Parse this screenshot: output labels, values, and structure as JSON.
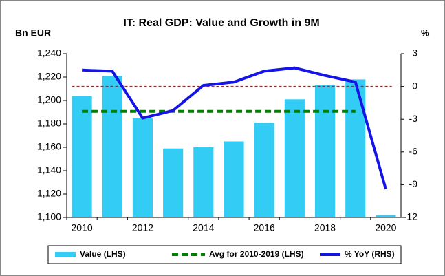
{
  "chart_data": {
    "type": "combo",
    "title": "IT: Real GDP: Value and Growth in 9M",
    "y_label": "Bn EUR",
    "y2_label": "%",
    "categories": [
      "2010",
      null,
      "2012",
      null,
      "2014",
      null,
      "2016",
      null,
      "2018",
      null,
      "2020"
    ],
    "series": [
      {
        "name": "Value (LHS)",
        "kind": "bar",
        "color": "#33ccf5",
        "values": [
          1204,
          1221,
          1185,
          1159,
          1160,
          1165,
          1181,
          1201,
          1213,
          1218,
          1102
        ]
      },
      {
        "name": "Avg for 2010-2019 (LHS)",
        "kind": "dashed-line",
        "color": "#008000",
        "values": [
          1190.7,
          1190.7,
          1190.7,
          1190.7,
          1190.7,
          1190.7,
          1190.7,
          1190.7,
          1190.7,
          1190.7,
          null
        ]
      },
      {
        "name": "% YoY (RHS)",
        "kind": "line",
        "axis": "y2",
        "color": "#1414e6",
        "values": [
          1.5,
          1.4,
          -2.9,
          -2.2,
          0.1,
          0.4,
          1.4,
          1.7,
          1.0,
          0.4,
          -9.4
        ]
      }
    ],
    "reference_line": {
      "axis": "y2",
      "value": 0,
      "color": "#ff0000"
    },
    "ylim": [
      1100,
      1240
    ],
    "yticks": [
      {
        "value": 1100,
        "label": "1,100"
      },
      {
        "value": 1120,
        "label": "1,120"
      },
      {
        "value": 1140,
        "label": "1,140"
      },
      {
        "value": 1160,
        "label": "1,160"
      },
      {
        "value": 1180,
        "label": "1,180"
      },
      {
        "value": 1200,
        "label": "1,200"
      },
      {
        "value": 1220,
        "label": "1,220"
      },
      {
        "value": 1240,
        "label": "1,240"
      }
    ],
    "y2lim": [
      -12,
      3
    ],
    "y2ticks": [
      -12,
      -9,
      -6,
      -3,
      0,
      3
    ],
    "legend": "bottom"
  }
}
